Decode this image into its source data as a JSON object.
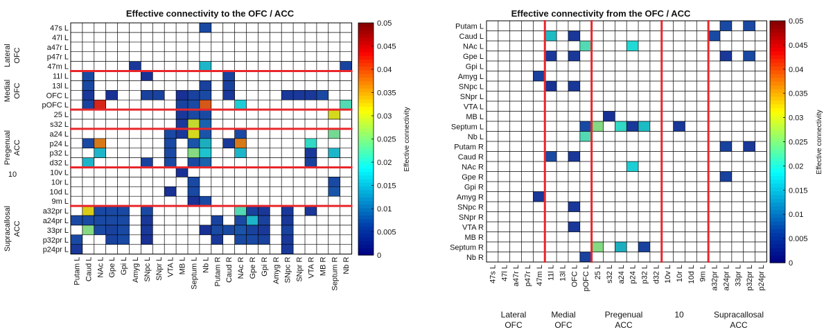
{
  "chart_data": [
    {
      "type": "heatmap",
      "title": "Effective connectivity to the OFC / ACC",
      "colorbar": {
        "label": "Effective connectivity",
        "range": [
          0,
          0.05
        ],
        "ticks": [
          0,
          0.005,
          0.01,
          0.015,
          0.02,
          0.025,
          0.03,
          0.035,
          0.04,
          0.045,
          0.05
        ]
      },
      "rows": [
        "47s L",
        "47l L",
        "a47r L",
        "p47r L",
        "47m L",
        "11l L",
        "13l L",
        "OFC L",
        "pOFC L",
        "25 L",
        "s32 L",
        "a24 L",
        "p24 L",
        "p32 L",
        "d32 L",
        "10v L",
        "10r L",
        "10d L",
        "9m L",
        "a32pr L",
        "a24pr L",
        "33pr L",
        "p32pr L",
        "p24pr L"
      ],
      "columns": [
        "Putam L",
        "Caud L",
        "NAc L",
        "Gpe L",
        "Gpi L",
        "Amyg L",
        "SNpc L",
        "SNpr L",
        "VTA L",
        "MB L",
        "Septum L",
        "Nb L",
        "Putam R",
        "Caud R",
        "NAc R",
        "Gpe R",
        "Gpi R",
        "Amyg R",
        "SNpc R",
        "SNpr R",
        "VTA R",
        "MB R",
        "Septum R",
        "Nb R"
      ],
      "group_labels": [
        {
          "lines": [
            "Lateral",
            "OFC"
          ]
        },
        {
          "lines": [
            "Medial",
            "OFC"
          ]
        },
        {
          "lines": [
            "Pregenual",
            "ACC"
          ]
        },
        {
          "lines": [
            "10"
          ]
        },
        {
          "lines": [
            "Supracallosal",
            "ACC"
          ]
        }
      ],
      "cells": [
        [
          0,
          11,
          0.006
        ],
        [
          4,
          5,
          0.004
        ],
        [
          4,
          11,
          0.016
        ],
        [
          4,
          23,
          0.005
        ],
        [
          5,
          1,
          0.006
        ],
        [
          5,
          6,
          0.003
        ],
        [
          5,
          13,
          0.005
        ],
        [
          6,
          1,
          0.006
        ],
        [
          6,
          11,
          0.005
        ],
        [
          6,
          13,
          0.005
        ],
        [
          7,
          1,
          0.004
        ],
        [
          7,
          3,
          0.003
        ],
        [
          7,
          6,
          0.005
        ],
        [
          7,
          7,
          0.005
        ],
        [
          7,
          9,
          0.003
        ],
        [
          7,
          10,
          0.005
        ],
        [
          7,
          11,
          0.006
        ],
        [
          7,
          13,
          0.004
        ],
        [
          7,
          18,
          0.004
        ],
        [
          7,
          19,
          0.004
        ],
        [
          7,
          20,
          0.004
        ],
        [
          7,
          21,
          0.006
        ],
        [
          8,
          1,
          0.005
        ],
        [
          8,
          2,
          0.043
        ],
        [
          8,
          9,
          0.005
        ],
        [
          8,
          10,
          0.006
        ],
        [
          8,
          11,
          0.04
        ],
        [
          8,
          14,
          0.018
        ],
        [
          8,
          23,
          0.022
        ],
        [
          9,
          9,
          0.004
        ],
        [
          9,
          10,
          0.006
        ],
        [
          9,
          11,
          0.006
        ],
        [
          9,
          22,
          0.031
        ],
        [
          10,
          9,
          0.004
        ],
        [
          10,
          10,
          0.03
        ],
        [
          10,
          11,
          0.008
        ],
        [
          11,
          8,
          0.006
        ],
        [
          11,
          9,
          0.004
        ],
        [
          11,
          10,
          0.031
        ],
        [
          11,
          11,
          0.007
        ],
        [
          11,
          14,
          0.006
        ],
        [
          11,
          22,
          0.024
        ],
        [
          12,
          1,
          0.006
        ],
        [
          12,
          2,
          0.038
        ],
        [
          12,
          8,
          0.006
        ],
        [
          12,
          10,
          0.007
        ],
        [
          12,
          11,
          0.014
        ],
        [
          12,
          13,
          0.004
        ],
        [
          12,
          14,
          0.038
        ],
        [
          12,
          20,
          0.02
        ],
        [
          13,
          2,
          0.016
        ],
        [
          13,
          8,
          0.006
        ],
        [
          13,
          10,
          0.025
        ],
        [
          13,
          11,
          0.017
        ],
        [
          13,
          14,
          0.016
        ],
        [
          13,
          20,
          0.004
        ],
        [
          13,
          22,
          0.016
        ],
        [
          14,
          1,
          0.016
        ],
        [
          14,
          6,
          0.005
        ],
        [
          14,
          8,
          0.006
        ],
        [
          14,
          10,
          0.006
        ],
        [
          14,
          11,
          0.008
        ],
        [
          14,
          20,
          0.005
        ],
        [
          15,
          9,
          0.003
        ],
        [
          16,
          10,
          0.006
        ],
        [
          16,
          22,
          0.006
        ],
        [
          17,
          8,
          0.003
        ],
        [
          17,
          10,
          0.006
        ],
        [
          17,
          22,
          0.007
        ],
        [
          18,
          10,
          0.003
        ],
        [
          18,
          11,
          0.006
        ],
        [
          19,
          1,
          0.032
        ],
        [
          19,
          2,
          0.006
        ],
        [
          19,
          3,
          0.006
        ],
        [
          19,
          4,
          0.006
        ],
        [
          19,
          6,
          0.006
        ],
        [
          19,
          14,
          0.022
        ],
        [
          19,
          15,
          0.005
        ],
        [
          19,
          16,
          0.004
        ],
        [
          19,
          18,
          0.004
        ],
        [
          19,
          20,
          0.004
        ],
        [
          20,
          0,
          0.006
        ],
        [
          20,
          1,
          0.006
        ],
        [
          20,
          2,
          0.006
        ],
        [
          20,
          3,
          0.006
        ],
        [
          20,
          4,
          0.006
        ],
        [
          20,
          6,
          0.004
        ],
        [
          20,
          12,
          0.005
        ],
        [
          20,
          14,
          0.006
        ],
        [
          20,
          15,
          0.016
        ],
        [
          20,
          16,
          0.005
        ],
        [
          20,
          18,
          0.004
        ],
        [
          21,
          1,
          0.025
        ],
        [
          21,
          2,
          0.006
        ],
        [
          21,
          3,
          0.005
        ],
        [
          21,
          4,
          0.006
        ],
        [
          21,
          6,
          0.004
        ],
        [
          21,
          11,
          0.003
        ],
        [
          21,
          12,
          0.006
        ],
        [
          21,
          13,
          0.006
        ],
        [
          21,
          14,
          0.007
        ],
        [
          21,
          15,
          0.005
        ],
        [
          21,
          16,
          0.004
        ],
        [
          21,
          18,
          0.005
        ],
        [
          22,
          0,
          0.006
        ],
        [
          22,
          3,
          0.005
        ],
        [
          22,
          4,
          0.006
        ],
        [
          22,
          6,
          0.003
        ],
        [
          22,
          12,
          0.004
        ],
        [
          22,
          14,
          0.006
        ],
        [
          22,
          15,
          0.006
        ],
        [
          22,
          16,
          0.005
        ],
        [
          22,
          18,
          0.004
        ],
        [
          23,
          0,
          0.004
        ],
        [
          23,
          18,
          0.004
        ]
      ]
    },
    {
      "type": "heatmap",
      "title": "Effective connectivity from the OFC / ACC",
      "colorbar": {
        "label": "Effective connectivity",
        "range": [
          0,
          0.05
        ],
        "ticks": [
          0,
          0.005,
          0.01,
          0.015,
          0.02,
          0.025,
          0.03,
          0.035,
          0.04,
          0.045,
          0.05
        ]
      },
      "rows": [
        "Putam L",
        "Caud L",
        "NAc L",
        "Gpe L",
        "Gpi L",
        "Amyg L",
        "SNpc L",
        "SNpr L",
        "VTA L",
        "MB L",
        "Septum L",
        "Nb L",
        "Putam R",
        "Caud R",
        "NAc R",
        "Gpe R",
        "Gpi R",
        "Amyg R",
        "SNpc R",
        "SNpr R",
        "VTA R",
        "MB R",
        "Septum R",
        "Nb R"
      ],
      "columns": [
        "47s L",
        "47l L",
        "a47r L",
        "p47r L",
        "47m L",
        "11l L",
        "13l L",
        "OFC L",
        "pOFC L",
        "25 L",
        "s32 L",
        "a24 L",
        "p24 L",
        "p32 L",
        "d32 L",
        "10v L",
        "10r L",
        "10d L",
        "9m L",
        "a32pr L",
        "a24pr L",
        "33pr L",
        "p32pr L",
        "p24pr L"
      ],
      "group_labels": [
        {
          "lines": [
            "Lateral",
            "OFC"
          ]
        },
        {
          "lines": [
            "Medial",
            "OFC"
          ]
        },
        {
          "lines": [
            "Pregenual",
            "ACC"
          ]
        },
        {
          "lines": [
            "10"
          ]
        },
        {
          "lines": [
            "Supracallosal",
            "ACC"
          ]
        }
      ],
      "cells": [
        [
          0,
          20,
          0.006
        ],
        [
          0,
          22,
          0.006
        ],
        [
          1,
          5,
          0.015
        ],
        [
          1,
          7,
          0.004
        ],
        [
          1,
          19,
          0.006
        ],
        [
          2,
          8,
          0.022
        ],
        [
          2,
          12,
          0.019
        ],
        [
          3,
          5,
          0.004
        ],
        [
          3,
          7,
          0.004
        ],
        [
          3,
          20,
          0.004
        ],
        [
          3,
          22,
          0.006
        ],
        [
          5,
          4,
          0.005
        ],
        [
          6,
          5,
          0.003
        ],
        [
          6,
          7,
          0.004
        ],
        [
          9,
          10,
          0.003
        ],
        [
          10,
          8,
          0.006
        ],
        [
          10,
          9,
          0.025
        ],
        [
          10,
          11,
          0.02
        ],
        [
          10,
          12,
          0.004
        ],
        [
          10,
          13,
          0.015
        ],
        [
          10,
          16,
          0.004
        ],
        [
          11,
          8,
          0.022
        ],
        [
          12,
          20,
          0.005
        ],
        [
          12,
          22,
          0.004
        ],
        [
          13,
          5,
          0.006
        ],
        [
          13,
          7,
          0.004
        ],
        [
          14,
          12,
          0.018
        ],
        [
          15,
          20,
          0.005
        ],
        [
          17,
          4,
          0.004
        ],
        [
          18,
          7,
          0.004
        ],
        [
          20,
          7,
          0.004
        ],
        [
          22,
          9,
          0.025
        ],
        [
          22,
          11,
          0.014
        ],
        [
          22,
          13,
          0.005
        ],
        [
          23,
          8,
          0.005
        ]
      ]
    }
  ]
}
